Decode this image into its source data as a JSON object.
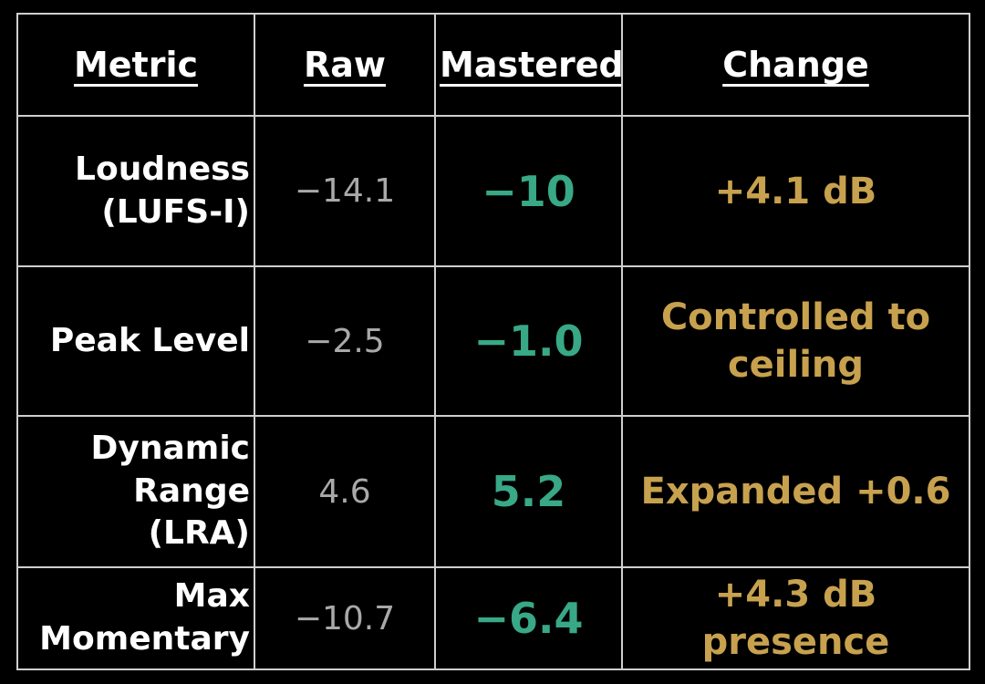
{
  "table": {
    "headers": [
      "Metric",
      "Raw",
      "Mastered",
      "Change"
    ],
    "rows": [
      {
        "metric": "Loudness (LUFS-I)",
        "raw": "−14.1",
        "mastered": "−10",
        "change": "+4.1 dB"
      },
      {
        "metric": "Peak Level",
        "raw": "−2.5",
        "mastered": "−1.0",
        "change": "Controlled to ceiling"
      },
      {
        "metric": "Dynamic Range (LRA)",
        "raw": "4.6",
        "mastered": "5.2",
        "change": "Expanded +0.6"
      },
      {
        "metric": "Max Momentary",
        "raw": "−10.7",
        "mastered": "−6.4",
        "change": "+4.3 dB presence"
      }
    ],
    "colors": {
      "background": "#000000",
      "border": "#cfcfcf",
      "header_text": "#ffffff",
      "metric_text": "#ffffff",
      "raw_text": "#a9a9a9",
      "mastered_accent": "#38a886",
      "change_accent": "#c7a14e"
    }
  },
  "chart_data": {
    "type": "table",
    "columns": [
      "Metric",
      "Raw",
      "Mastered",
      "Change"
    ],
    "rows": [
      [
        "Loudness (LUFS-I)",
        "−14.1",
        "−10",
        "+4.1 dB"
      ],
      [
        "Peak Level",
        "−2.5",
        "−1.0",
        "Controlled to ceiling"
      ],
      [
        "Dynamic Range (LRA)",
        "4.6",
        "5.2",
        "Expanded +0.6"
      ],
      [
        "Max Momentary",
        "−10.7",
        "−6.4",
        "+4.3 dB presence"
      ]
    ],
    "notes": "Raw values gray, Mastered values teal accent, Change values gold accent; dark slide-style comparison table"
  }
}
